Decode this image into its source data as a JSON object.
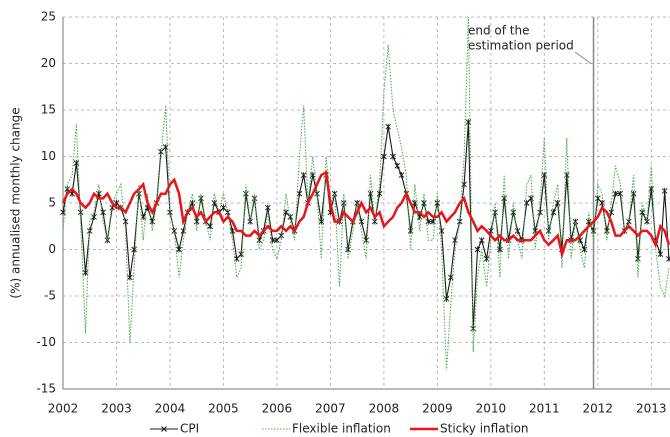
{
  "chart_data": {
    "type": "line",
    "y_label": "(%) annualised monthly change",
    "x": [
      2002,
      2002.08,
      2002.17,
      2002.25,
      2002.33,
      2002.42,
      2002.5,
      2002.58,
      2002.67,
      2002.75,
      2002.83,
      2002.92,
      2003,
      2003.08,
      2003.17,
      2003.25,
      2003.33,
      2003.42,
      2003.5,
      2003.58,
      2003.67,
      2003.75,
      2003.83,
      2003.92,
      2004,
      2004.08,
      2004.17,
      2004.25,
      2004.33,
      2004.42,
      2004.5,
      2004.58,
      2004.67,
      2004.75,
      2004.83,
      2004.92,
      2005,
      2005.08,
      2005.17,
      2005.25,
      2005.33,
      2005.42,
      2005.5,
      2005.58,
      2005.67,
      2005.75,
      2005.83,
      2005.92,
      2006,
      2006.08,
      2006.17,
      2006.25,
      2006.33,
      2006.42,
      2006.5,
      2006.58,
      2006.67,
      2006.75,
      2006.83,
      2006.92,
      2007,
      2007.08,
      2007.17,
      2007.25,
      2007.33,
      2007.42,
      2007.5,
      2007.58,
      2007.67,
      2007.75,
      2007.83,
      2007.92,
      2008,
      2008.08,
      2008.17,
      2008.25,
      2008.33,
      2008.42,
      2008.5,
      2008.58,
      2008.67,
      2008.75,
      2008.83,
      2008.92,
      2009,
      2009.08,
      2009.17,
      2009.25,
      2009.33,
      2009.42,
      2009.5,
      2009.58,
      2009.67,
      2009.75,
      2009.83,
      2009.92,
      2010,
      2010.08,
      2010.17,
      2010.25,
      2010.33,
      2010.42,
      2010.5,
      2010.58,
      2010.67,
      2010.75,
      2010.83,
      2010.92,
      2011,
      2011.08,
      2011.17,
      2011.25,
      2011.33,
      2011.42,
      2011.5,
      2011.58,
      2011.67,
      2011.75,
      2011.83,
      2011.92,
      2012,
      2012.08,
      2012.17,
      2012.25,
      2012.33,
      2012.42,
      2012.5,
      2012.58,
      2012.67,
      2012.75,
      2012.83,
      2012.92,
      2013,
      2013.08,
      2013.17,
      2013.25,
      2013.33
    ],
    "series": [
      {
        "name": "CPI",
        "color": "#1a1a1a",
        "style": "marker",
        "values": [
          4,
          6.5,
          6,
          9.3,
          4,
          -2.5,
          2,
          3.5,
          6,
          4,
          1,
          4.5,
          5,
          4.5,
          3,
          -3,
          0,
          6,
          3.5,
          4.5,
          3,
          5,
          10.5,
          11,
          4,
          2,
          0,
          2,
          4,
          5,
          3,
          5.5,
          3,
          2.5,
          5,
          4,
          4.5,
          4,
          2,
          -1,
          -0.5,
          6,
          3,
          5.5,
          1,
          2,
          4.5,
          1,
          1,
          1.5,
          4,
          3.5,
          2,
          6,
          8,
          5,
          8,
          6,
          3,
          8,
          4,
          6,
          3,
          5,
          0,
          3,
          5,
          3,
          1,
          6,
          3,
          6,
          10,
          13.2,
          10,
          9,
          8,
          6,
          2,
          5,
          3.5,
          5,
          3,
          3,
          5,
          2,
          -5.3,
          -3,
          1,
          3,
          7,
          13.7,
          -8.5,
          0,
          1,
          -1,
          2,
          4,
          0,
          5.5,
          1,
          4,
          2,
          1,
          5,
          5.5,
          2,
          4,
          8,
          2,
          4,
          5,
          0,
          8,
          1,
          3,
          1,
          0,
          3,
          2,
          5.5,
          5,
          2,
          4,
          6,
          6,
          2,
          3,
          6,
          -1,
          4,
          3,
          6.5,
          1,
          -0.5,
          6.3,
          -1
        ]
      },
      {
        "name": "Flexible inflation",
        "color": "#4caf50",
        "style": "dotted",
        "values": [
          2,
          7,
          8,
          13.5,
          3,
          -9,
          3,
          4,
          7,
          3,
          1,
          5,
          6,
          7,
          2,
          -10,
          -2,
          7,
          1,
          6,
          2,
          5,
          10,
          15.5,
          4,
          2,
          -3,
          1,
          4,
          6,
          2,
          6,
          3,
          1,
          6,
          4,
          6,
          4,
          1,
          -3,
          -2,
          7,
          3,
          6,
          0,
          1,
          4,
          0,
          -1,
          1,
          6,
          3,
          1,
          10,
          15.5,
          5,
          10,
          6,
          -1,
          10,
          5,
          6,
          -4,
          6,
          -1,
          2,
          5,
          2,
          -1,
          8,
          3,
          7,
          17,
          22,
          15,
          13,
          11,
          8,
          0,
          7,
          2,
          6,
          1,
          1,
          6,
          0,
          -13,
          -6,
          0,
          3,
          10,
          25,
          -11,
          -3,
          0,
          -4,
          1,
          5,
          -3,
          8,
          -1,
          5,
          1,
          -1,
          7,
          8,
          0,
          5,
          12,
          1,
          5,
          7,
          -2,
          12,
          -1,
          3,
          0,
          -2,
          4,
          1,
          7,
          6,
          1,
          5,
          9,
          7,
          2,
          3,
          8,
          -3,
          5,
          3,
          9,
          0,
          -4,
          -5,
          -2
        ]
      },
      {
        "name": "Sticky inflation",
        "color": "#e8151b",
        "style": "thick",
        "values": [
          5,
          6,
          6.5,
          6,
          5,
          4.5,
          5,
          6,
          5.5,
          5.5,
          6,
          5,
          4.5,
          4.5,
          4,
          5,
          6,
          6.5,
          7,
          5,
          4,
          5,
          6,
          6,
          7,
          7.5,
          6,
          3,
          4,
          4.5,
          3.5,
          4,
          3,
          3.5,
          4,
          4,
          3,
          3.5,
          3,
          2,
          2,
          1.5,
          1.5,
          2,
          1.5,
          2,
          2.5,
          2,
          2,
          2.5,
          2,
          2.5,
          2,
          3,
          3.5,
          5,
          6,
          7,
          8,
          8.3,
          5,
          3,
          3,
          4,
          3.5,
          3,
          4,
          5,
          4,
          4.5,
          3.5,
          4,
          2.5,
          3,
          3.5,
          4.5,
          5,
          6,
          5,
          4,
          4,
          3.5,
          4,
          3.5,
          3.5,
          4,
          3,
          3.5,
          4,
          5,
          5.5,
          4,
          3,
          2,
          2.5,
          2,
          1.5,
          1,
          1.5,
          1,
          1,
          1.5,
          1,
          1,
          1,
          1,
          1.5,
          2,
          1,
          0.5,
          1,
          1.5,
          -0.5,
          1,
          1,
          1,
          1.5,
          2,
          2.5,
          3,
          3.5,
          4.5,
          4,
          3,
          1.5,
          1.5,
          2,
          2.5,
          2,
          1.5,
          2,
          2,
          1.5,
          0.5,
          2.5,
          2,
          0.5
        ]
      }
    ],
    "xlim": [
      2002,
      2013.35
    ],
    "xticks": [
      2002,
      2003,
      2004,
      2005,
      2006,
      2007,
      2008,
      2009,
      2010,
      2011,
      2012,
      2013
    ],
    "ylim": [
      -15,
      25
    ],
    "yticks": [
      -15,
      -10,
      -5,
      0,
      5,
      10,
      15,
      20,
      25
    ],
    "grid": true,
    "annotation": {
      "lines": [
        "end of the",
        "estimation period"
      ],
      "x": 2011.92
    }
  }
}
